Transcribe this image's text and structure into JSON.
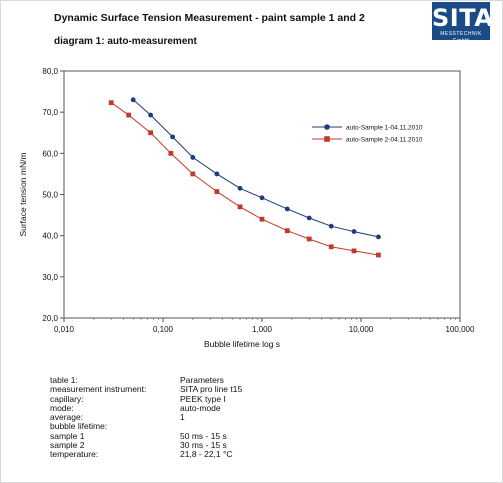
{
  "header": {
    "title": "Dynamic Surface Tension Measurement - paint sample 1 and 2",
    "subtitle": "diagram 1: auto-measurement"
  },
  "logo": {
    "text": "SITA",
    "subtext": "MESSTECHNIK GmbH"
  },
  "chart_data": {
    "type": "line",
    "xlabel": "Bubble lifetime log      s",
    "ylabel": "Surface tension    mN/m",
    "x_scale": "log",
    "xlim": [
      0.01,
      100
    ],
    "ylim": [
      20,
      80
    ],
    "x_ticks": [
      0.01,
      0.1,
      1,
      10,
      100
    ],
    "x_tick_labels": [
      "0,010",
      "0,100",
      "1,000",
      "10,000",
      "100,000"
    ],
    "y_ticks": [
      20,
      30,
      40,
      50,
      60,
      70,
      80
    ],
    "y_tick_labels": [
      "20,0",
      "30,0",
      "40,0",
      "50,0",
      "60,0",
      "70,0",
      "80,0"
    ],
    "grid": false,
    "legend_position": "top-right",
    "series": [
      {
        "name": "auto-Sample 1-04.11.2010",
        "color": "#1f3a78",
        "marker": "circle",
        "x": [
          0.05,
          0.075,
          0.125,
          0.2,
          0.35,
          0.6,
          1.0,
          1.8,
          3.0,
          5.0,
          8.5,
          15
        ],
        "y": [
          73,
          69.3,
          64,
          59,
          55,
          51.5,
          49.2,
          46.5,
          44.3,
          42.3,
          41,
          39.7
        ]
      },
      {
        "name": "auto-Sample 2-04.11.2010",
        "color": "#c0392b",
        "marker": "square",
        "x": [
          0.03,
          0.045,
          0.075,
          0.12,
          0.2,
          0.35,
          0.6,
          1.0,
          1.8,
          3.0,
          5.0,
          8.5,
          15
        ],
        "y": [
          72.3,
          69.3,
          65,
          60,
          55,
          50.7,
          47,
          44,
          41.2,
          39.2,
          37.3,
          36.3,
          35.3
        ]
      }
    ]
  },
  "table": {
    "rows": [
      {
        "key": "table 1:",
        "value": "Parameters"
      },
      {
        "key": "measurement instrument:",
        "value": "SITA pro line t15"
      },
      {
        "key": "capillary:",
        "value": "PEEK type I"
      },
      {
        "key": "mode:",
        "value": "auto-mode"
      },
      {
        "key": "average:",
        "value": "1"
      },
      {
        "key": "bubble lifetime:",
        "value": ""
      },
      {
        "key": "sample 1",
        "value": "50 ms - 15 s"
      },
      {
        "key": "sample 2",
        "value": "30 ms - 15 s"
      },
      {
        "key": "temperature:",
        "value": "21,8 - 22,1 °C"
      }
    ]
  }
}
